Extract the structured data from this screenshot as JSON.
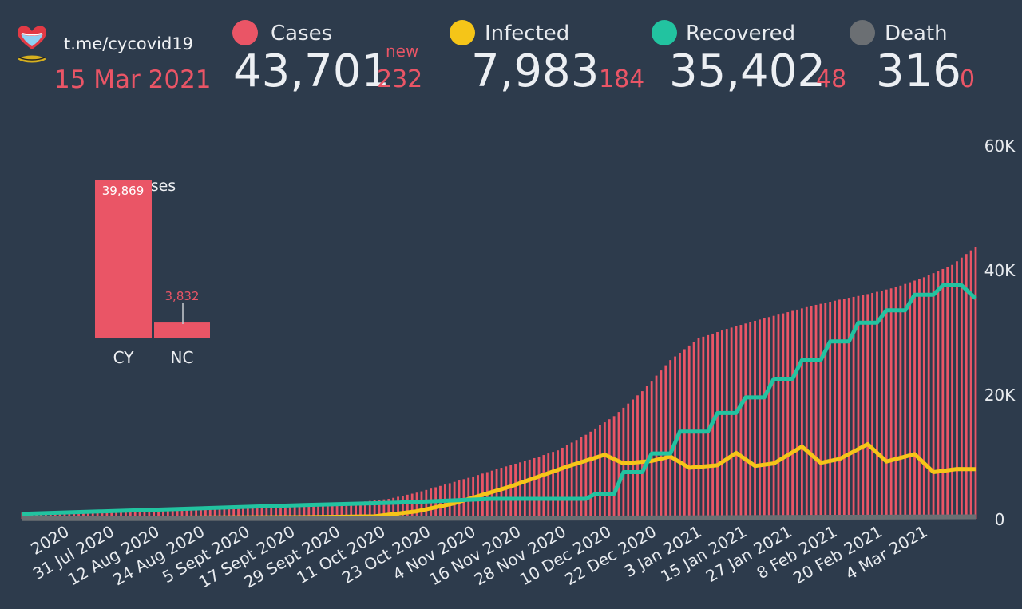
{
  "header": {
    "channel": "t.me/cycovid19",
    "date": "15 Mar 2021",
    "new_word": "new",
    "stats": [
      {
        "key": "cases",
        "label": "Cases",
        "total": "43,701",
        "new": "232",
        "color": "#ea5566"
      },
      {
        "key": "infected",
        "label": "Infected",
        "total": "7,983",
        "new": "184",
        "color": "#f5c518"
      },
      {
        "key": "recovered",
        "label": "Recovered",
        "total": "35,402",
        "new": "48",
        "color": "#22c3a0"
      },
      {
        "key": "death",
        "label": "Death",
        "total": "316",
        "new": "0",
        "color": "#6b6f73"
      }
    ]
  },
  "chart_data": [
    {
      "type": "bar",
      "title": "Cases",
      "categories": [
        "CY",
        "NC"
      ],
      "values": [
        39869,
        3832
      ],
      "value_labels": [
        "39,869",
        "3,832"
      ],
      "color": "#ea5566"
    },
    {
      "type": "bar+line",
      "y_ticks": [
        "0",
        "20K",
        "40K",
        "60K"
      ],
      "ylim": [
        0,
        60000
      ],
      "grid": false,
      "x_labels": [
        "2020",
        "31 Jul 2020",
        "12 Aug 2020",
        "24 Aug 2020",
        "5 Sept 2020",
        "17 Sept 2020",
        "29 Sept 2020",
        "11 Oct 2020",
        "23 Oct 2020",
        "4 Nov 2020",
        "16 Nov 2020",
        "28 Nov 2020",
        "10 Dec 2020",
        "22 Dec 2020",
        "3 Jan 2021",
        "15 Jan 2021",
        "27 Jan 2021",
        "8 Feb 2021",
        "20 Feb 2021",
        "4 Mar 2021"
      ],
      "series": [
        {
          "name": "Cases",
          "kind": "bar",
          "color": "#ea5566",
          "points": [
            [
              0,
              1000
            ],
            [
              9,
              1180
            ],
            [
              18,
              1350
            ],
            [
              27,
              1500
            ],
            [
              36,
              1680
            ],
            [
              45,
              1880
            ],
            [
              54,
              2100
            ],
            [
              63,
              2350
            ],
            [
              72,
              2700
            ],
            [
              78,
              3200
            ],
            [
              84,
              4200
            ],
            [
              90,
              5500
            ],
            [
              96,
              6800
            ],
            [
              102,
              8200
            ],
            [
              108,
              9500
            ],
            [
              114,
              11000
            ],
            [
              120,
              13500
            ],
            [
              126,
              16500
            ],
            [
              132,
              20500
            ],
            [
              138,
              25500
            ],
            [
              144,
              29000
            ],
            [
              150,
              30500
            ],
            [
              156,
              31800
            ],
            [
              162,
              33000
            ],
            [
              168,
              34200
            ],
            [
              174,
              35200
            ],
            [
              180,
              36100
            ],
            [
              186,
              37200
            ],
            [
              192,
              38800
            ],
            [
              198,
              40800
            ],
            [
              203,
              43701
            ]
          ]
        },
        {
          "name": "Infected",
          "kind": "line",
          "color": "#f5c518",
          "points": [
            [
              0,
              100
            ],
            [
              60,
              250
            ],
            [
              75,
              400
            ],
            [
              84,
              1200
            ],
            [
              92,
              2500
            ],
            [
              104,
              5200
            ],
            [
              116,
              8400
            ],
            [
              124,
              10300
            ],
            [
              128,
              8900
            ],
            [
              134,
              9300
            ],
            [
              138,
              10000
            ],
            [
              142,
              8200
            ],
            [
              148,
              8600
            ],
            [
              152,
              10600
            ],
            [
              156,
              8500
            ],
            [
              160,
              8900
            ],
            [
              166,
              11600
            ],
            [
              170,
              9000
            ],
            [
              174,
              9600
            ],
            [
              180,
              12000
            ],
            [
              184,
              9200
            ],
            [
              190,
              10400
            ],
            [
              194,
              7500
            ],
            [
              199,
              8000
            ],
            [
              203,
              7983
            ]
          ]
        },
        {
          "name": "Recovered",
          "kind": "line",
          "color": "#22c3a0",
          "points": [
            [
              0,
              800
            ],
            [
              60,
              2200
            ],
            [
              80,
              2600
            ],
            [
              100,
              3200
            ],
            [
              120,
              3200
            ],
            [
              122,
              4000
            ],
            [
              126,
              4000
            ],
            [
              128,
              7500
            ],
            [
              132,
              7500
            ],
            [
              134,
              10500
            ],
            [
              138,
              10500
            ],
            [
              140,
              14000
            ],
            [
              146,
              14000
            ],
            [
              148,
              17000
            ],
            [
              152,
              17000
            ],
            [
              154,
              19500
            ],
            [
              158,
              19500
            ],
            [
              160,
              22500
            ],
            [
              164,
              22500
            ],
            [
              166,
              25500
            ],
            [
              170,
              25500
            ],
            [
              172,
              28500
            ],
            [
              176,
              28500
            ],
            [
              178,
              31500
            ],
            [
              182,
              31500
            ],
            [
              184,
              33500
            ],
            [
              188,
              33500
            ],
            [
              190,
              36000
            ],
            [
              194,
              36000
            ],
            [
              196,
              37500
            ],
            [
              200,
              37500
            ],
            [
              203,
              35402
            ]
          ]
        },
        {
          "name": "Death",
          "kind": "line",
          "color": "#6b6f73",
          "points": [
            [
              0,
              20
            ],
            [
              80,
              60
            ],
            [
              120,
              120
            ],
            [
              160,
              220
            ],
            [
              203,
              316
            ]
          ]
        }
      ]
    }
  ]
}
